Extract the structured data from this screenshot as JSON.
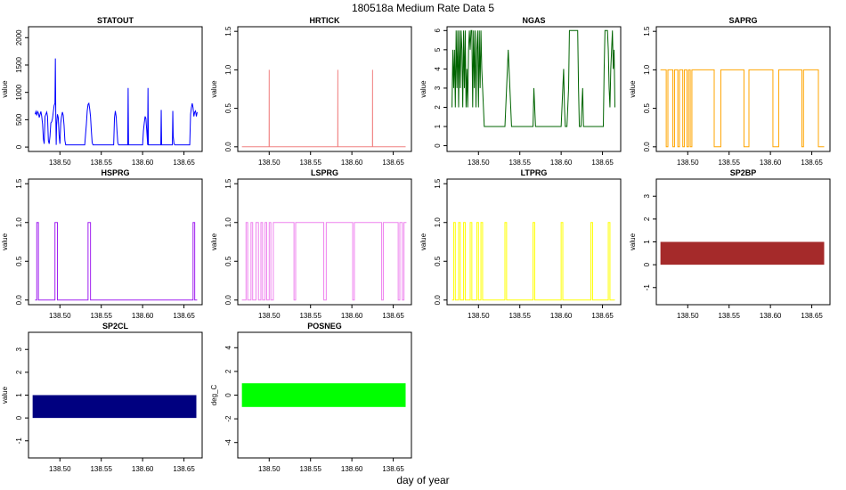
{
  "figure": {
    "title": "180518a   Medium Rate Data 5",
    "xlabel": "day of year"
  },
  "chart_data": [
    {
      "type": "line",
      "title": "STATOUT",
      "ylabel": "value",
      "color": "#0000ff",
      "xlim": [
        138.462,
        138.672
      ],
      "ylim": [
        -80,
        2200
      ],
      "xticks": [
        138.5,
        138.55,
        138.6,
        138.65
      ],
      "yticks": [
        0,
        500,
        1000,
        1500,
        2000
      ],
      "x": [
        138.47,
        138.471,
        138.472,
        138.473,
        138.474,
        138.475,
        138.476,
        138.477,
        138.478,
        138.479,
        138.48,
        138.481,
        138.482,
        138.483,
        138.484,
        138.485,
        138.486,
        138.487,
        138.488,
        138.489,
        138.49,
        138.491,
        138.492,
        138.493,
        138.494,
        138.4945,
        138.495,
        138.4955,
        138.496,
        138.497,
        138.498,
        138.499,
        138.5,
        138.501,
        138.502,
        138.503,
        138.504,
        138.505,
        138.506,
        138.507,
        138.53,
        138.532,
        138.533,
        138.534,
        138.535,
        138.536,
        138.537,
        138.538,
        138.539,
        138.54,
        138.541,
        138.565,
        138.566,
        138.567,
        138.568,
        138.569,
        138.57,
        138.571,
        138.582,
        138.5825,
        138.583,
        138.6,
        138.601,
        138.602,
        138.603,
        138.604,
        138.605,
        138.606,
        138.606,
        138.6065,
        138.607,
        138.622,
        138.6225,
        138.623,
        138.636,
        138.6365,
        138.637,
        138.638,
        138.639,
        138.657,
        138.658,
        138.659,
        138.66,
        138.661,
        138.662,
        138.663,
        138.664,
        138.665,
        138.666
      ],
      "y": [
        600,
        650,
        580,
        650,
        620,
        540,
        600,
        650,
        560,
        420,
        150,
        60,
        560,
        600,
        640,
        560,
        120,
        60,
        200,
        440,
        460,
        520,
        640,
        760,
        800,
        1620,
        600,
        40,
        400,
        600,
        540,
        220,
        60,
        440,
        560,
        640,
        580,
        400,
        120,
        40,
        40,
        420,
        660,
        780,
        800,
        700,
        560,
        300,
        80,
        40,
        40,
        40,
        540,
        660,
        560,
        300,
        80,
        40,
        40,
        1080,
        40,
        40,
        300,
        440,
        560,
        520,
        300,
        80,
        40,
        1080,
        40,
        40,
        680,
        40,
        40,
        660,
        200,
        60,
        40,
        40,
        600,
        720,
        800,
        720,
        560,
        640,
        660,
        560,
        640
      ]
    },
    {
      "type": "line",
      "title": "HRTICK",
      "ylabel": "value",
      "color": "#f08080",
      "xlim": [
        138.462,
        138.672
      ],
      "ylim": [
        -0.06,
        1.56
      ],
      "xticks": [
        138.5,
        138.55,
        138.6,
        138.65
      ],
      "yticks": [
        0.0,
        0.5,
        1.0,
        1.5
      ],
      "x": [
        138.467,
        138.4999,
        138.5,
        138.5001,
        138.5829,
        138.583,
        138.5831,
        138.6249,
        138.625,
        138.6251,
        138.665
      ],
      "y": [
        0,
        0,
        1,
        0,
        0,
        1,
        0,
        0,
        1,
        0,
        0
      ]
    },
    {
      "type": "line",
      "title": "NGAS",
      "ylabel": "value",
      "color": "#006400",
      "xlim": [
        138.462,
        138.672
      ],
      "ylim": [
        -0.3,
        6.2
      ],
      "xticks": [
        138.5,
        138.55,
        138.6,
        138.65
      ],
      "yticks": [
        0,
        1,
        2,
        3,
        4,
        5,
        6
      ],
      "x": [
        138.468,
        138.469,
        138.47,
        138.471,
        138.472,
        138.473,
        138.474,
        138.475,
        138.476,
        138.477,
        138.478,
        138.479,
        138.48,
        138.481,
        138.482,
        138.483,
        138.484,
        138.485,
        138.486,
        138.487,
        138.488,
        138.489,
        138.49,
        138.491,
        138.492,
        138.493,
        138.494,
        138.495,
        138.496,
        138.497,
        138.498,
        138.499,
        138.5,
        138.501,
        138.502,
        138.503,
        138.504,
        138.505,
        138.506,
        138.507,
        138.508,
        138.51,
        138.532,
        138.533,
        138.534,
        138.535,
        138.536,
        138.537,
        138.538,
        138.539,
        138.54,
        138.541,
        138.566,
        138.567,
        138.568,
        138.569,
        138.57,
        138.6,
        138.601,
        138.602,
        138.603,
        138.604,
        138.605,
        138.606,
        138.607,
        138.609,
        138.61,
        138.611,
        138.612,
        138.62,
        138.621,
        138.622,
        138.623,
        138.624,
        138.625,
        138.626,
        138.627,
        138.65,
        138.651,
        138.652,
        138.653,
        138.654,
        138.655,
        138.656,
        138.657,
        138.658,
        138.659,
        138.66,
        138.661,
        138.662,
        138.663,
        138.664,
        138.665
      ],
      "y": [
        2,
        5,
        3,
        5,
        2,
        6,
        3,
        6,
        2,
        6,
        3,
        6,
        5,
        2,
        6,
        3,
        6,
        2,
        4,
        2,
        5,
        6,
        5,
        6,
        6,
        2,
        6,
        3,
        6,
        2,
        5,
        6,
        2,
        6,
        3,
        6,
        4,
        3,
        2,
        1,
        1,
        1,
        1,
        2,
        3,
        4,
        5,
        4,
        3,
        2,
        1,
        1,
        1,
        3,
        2,
        1,
        1,
        1,
        2,
        3,
        4,
        2,
        1,
        1,
        1,
        3,
        6,
        6,
        6,
        6,
        3,
        1,
        1,
        1,
        2,
        3,
        1,
        1,
        1,
        4,
        6,
        6,
        6,
        6,
        5,
        3,
        2,
        4,
        5,
        6,
        4,
        5,
        2
      ]
    },
    {
      "type": "line",
      "title": "SAPRG",
      "ylabel": "value",
      "color": "#ffa500",
      "xlim": [
        138.462,
        138.672
      ],
      "ylim": [
        -0.06,
        1.56
      ],
      "xticks": [
        138.5,
        138.55,
        138.6,
        138.65
      ],
      "yticks": [
        0.0,
        0.5,
        1.0,
        1.5
      ],
      "x": [
        138.467,
        138.474,
        138.474,
        138.476,
        138.476,
        138.482,
        138.482,
        138.484,
        138.484,
        138.488,
        138.488,
        138.49,
        138.49,
        138.494,
        138.494,
        138.496,
        138.496,
        138.499,
        138.499,
        138.501,
        138.501,
        138.503,
        138.503,
        138.505,
        138.505,
        138.532,
        138.532,
        138.54,
        138.54,
        138.568,
        138.568,
        138.574,
        138.574,
        138.603,
        138.603,
        138.61,
        138.61,
        138.638,
        138.638,
        138.64,
        138.64,
        138.658,
        138.658,
        138.665
      ],
      "y": [
        1,
        1,
        0,
        0,
        1,
        1,
        0,
        0,
        1,
        1,
        0,
        0,
        1,
        1,
        0,
        0,
        1,
        1,
        0,
        0,
        1,
        1,
        0,
        0,
        1,
        1,
        0,
        0,
        1,
        1,
        0,
        0,
        1,
        1,
        0,
        0,
        1,
        1,
        0,
        0,
        1,
        1,
        0,
        0
      ]
    },
    {
      "type": "line",
      "title": "HSPRG",
      "ylabel": "value",
      "color": "#a020f0",
      "xlim": [
        138.462,
        138.672
      ],
      "ylim": [
        -0.06,
        1.56
      ],
      "xticks": [
        138.5,
        138.55,
        138.6,
        138.65
      ],
      "yticks": [
        0.0,
        0.5,
        1.0,
        1.5
      ],
      "x": [
        138.47,
        138.472,
        138.472,
        138.474,
        138.474,
        138.494,
        138.494,
        138.497,
        138.497,
        138.534,
        138.534,
        138.537,
        138.537,
        138.661,
        138.661,
        138.663,
        138.663,
        138.666
      ],
      "y": [
        0,
        0,
        1,
        1,
        0,
        0,
        1,
        1,
        0,
        0,
        1,
        1,
        0,
        0,
        1,
        1,
        0,
        0
      ]
    },
    {
      "type": "line",
      "title": "LSPRG",
      "ylabel": "value",
      "color": "#ee82ee",
      "xlim": [
        138.462,
        138.672
      ],
      "ylim": [
        -0.06,
        1.56
      ],
      "xticks": [
        138.5,
        138.55,
        138.6,
        138.65
      ],
      "yticks": [
        0.0,
        0.5,
        1.0,
        1.5
      ],
      "x": [
        138.467,
        138.472,
        138.472,
        138.474,
        138.474,
        138.478,
        138.478,
        138.48,
        138.48,
        138.484,
        138.484,
        138.487,
        138.487,
        138.49,
        138.49,
        138.492,
        138.492,
        138.495,
        138.495,
        138.497,
        138.497,
        138.5,
        138.5,
        138.502,
        138.502,
        138.505,
        138.505,
        138.53,
        138.53,
        138.532,
        138.532,
        138.566,
        138.566,
        138.569,
        138.569,
        138.601,
        138.601,
        138.603,
        138.603,
        138.636,
        138.636,
        138.638,
        138.638,
        138.656,
        138.656,
        138.658,
        138.658,
        138.661,
        138.661,
        138.663,
        138.663,
        138.666
      ],
      "y": [
        0,
        0,
        1,
        1,
        0,
        0,
        1,
        1,
        0,
        0,
        1,
        1,
        0,
        0,
        1,
        1,
        0,
        0,
        1,
        1,
        0,
        0,
        1,
        1,
        0,
        0,
        1,
        1,
        0,
        0,
        1,
        1,
        0,
        0,
        1,
        1,
        0,
        0,
        1,
        1,
        0,
        0,
        1,
        1,
        0,
        0,
        1,
        1,
        0,
        0,
        1,
        1
      ]
    },
    {
      "type": "line",
      "title": "LTPRG",
      "ylabel": "value",
      "color": "#ffff00",
      "xlim": [
        138.462,
        138.672
      ],
      "ylim": [
        -0.06,
        1.56
      ],
      "xticks": [
        138.5,
        138.55,
        138.6,
        138.65
      ],
      "yticks": [
        0.0,
        0.5,
        1.0,
        1.5
      ],
      "x": [
        138.468,
        138.47,
        138.47,
        138.472,
        138.472,
        138.476,
        138.476,
        138.478,
        138.478,
        138.482,
        138.482,
        138.484,
        138.484,
        138.49,
        138.49,
        138.492,
        138.492,
        138.498,
        138.498,
        138.5,
        138.5,
        138.503,
        138.503,
        138.505,
        138.505,
        138.532,
        138.532,
        138.534,
        138.534,
        138.566,
        138.566,
        138.568,
        138.568,
        138.6,
        138.6,
        138.602,
        138.602,
        138.636,
        138.636,
        138.638,
        138.638,
        138.657,
        138.657,
        138.659,
        138.659,
        138.665
      ],
      "y": [
        0,
        0,
        1,
        1,
        0,
        0,
        1,
        1,
        0,
        0,
        1,
        1,
        0,
        0,
        1,
        1,
        0,
        0,
        1,
        1,
        0,
        0,
        1,
        1,
        0,
        0,
        1,
        1,
        0,
        0,
        1,
        1,
        0,
        0,
        1,
        1,
        0,
        0,
        1,
        1,
        0,
        0,
        1,
        1,
        0,
        0
      ]
    },
    {
      "type": "area",
      "title": "SP2BP",
      "ylabel": "value",
      "color": "#a52a2a",
      "xlim": [
        138.462,
        138.672
      ],
      "ylim": [
        -1.75,
        3.75
      ],
      "xticks": [
        138.5,
        138.55,
        138.6,
        138.65
      ],
      "yticks": [
        -1,
        0,
        1,
        2,
        3
      ],
      "x": [
        138.467,
        138.665
      ],
      "ymin": 0,
      "ymax": 1
    },
    {
      "type": "area",
      "title": "SP2CL",
      "ylabel": "value",
      "color": "#000080",
      "xlim": [
        138.462,
        138.672
      ],
      "ylim": [
        -1.75,
        3.75
      ],
      "xticks": [
        138.5,
        138.55,
        138.6,
        138.65
      ],
      "yticks": [
        -1,
        0,
        1,
        2,
        3
      ],
      "x": [
        138.467,
        138.665
      ],
      "ymin": 0,
      "ymax": 1
    },
    {
      "type": "area",
      "title": "POSNEG",
      "ylabel": "deg_C",
      "color": "#00ff00",
      "xlim": [
        138.462,
        138.672
      ],
      "ylim": [
        -5.3,
        5.3
      ],
      "xticks": [
        138.5,
        138.55,
        138.6,
        138.65
      ],
      "yticks": [
        -4,
        -2,
        0,
        2,
        4
      ],
      "x": [
        138.467,
        138.665
      ],
      "ymin": -1,
      "ymax": 1
    }
  ]
}
